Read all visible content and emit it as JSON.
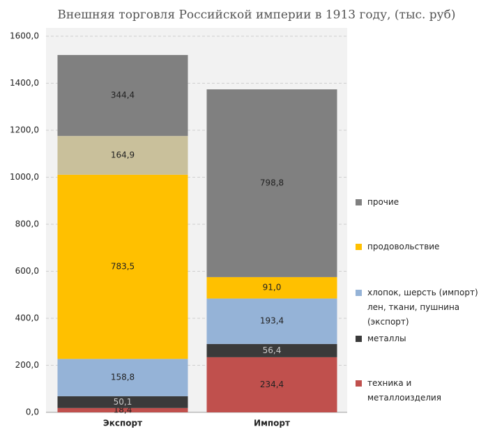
{
  "chart_data": {
    "type": "stacked_bar",
    "title": "Внешняя торговля Российской империи в 1913 году, (тыс. руб)",
    "categories": [
      "Экспорт",
      "Импорт"
    ],
    "series": [
      {
        "name": "техника и металлоизделия",
        "color": "#c0504d",
        "values": [
          18.4,
          234.4
        ],
        "value_labels": [
          "18,4",
          "234,4"
        ]
      },
      {
        "name": "металлы",
        "color": "#3a3a3a",
        "values": [
          50.1,
          56.4
        ],
        "value_labels": [
          "50,1",
          "56,4"
        ]
      },
      {
        "name": "хлопок, шерсть (импорт) лен, ткани, пушнина (экспорт)",
        "color": "#95b3d7",
        "values": [
          158.8,
          193.4
        ],
        "value_labels": [
          "158,8",
          "193,4"
        ]
      },
      {
        "name": "продовольствие",
        "color": "#ffc000",
        "values": [
          783.5,
          91.0
        ],
        "value_labels": [
          "783,5",
          "91,0"
        ]
      },
      {
        "name": null,
        "color": "#c9c09b",
        "values": [
          164.9,
          null
        ],
        "value_labels": [
          "164,9",
          null
        ]
      },
      {
        "name": "прочие",
        "color": "#808080",
        "values": [
          344.4,
          798.8
        ],
        "value_labels": [
          "344,4",
          "798,8"
        ]
      }
    ],
    "ylim": [
      0,
      1600
    ],
    "yticks": [
      {
        "value": 0,
        "label": "0,0"
      },
      {
        "value": 200,
        "label": "200,0"
      },
      {
        "value": 400,
        "label": "400,0"
      },
      {
        "value": 600,
        "label": "600,0"
      },
      {
        "value": 800,
        "label": "800,0"
      },
      {
        "value": 1000,
        "label": "1000,0"
      },
      {
        "value": 1200,
        "label": "1200,0"
      },
      {
        "value": 1400,
        "label": "1400,0"
      },
      {
        "value": 1600,
        "label": "1600,0"
      }
    ],
    "grid": true
  }
}
